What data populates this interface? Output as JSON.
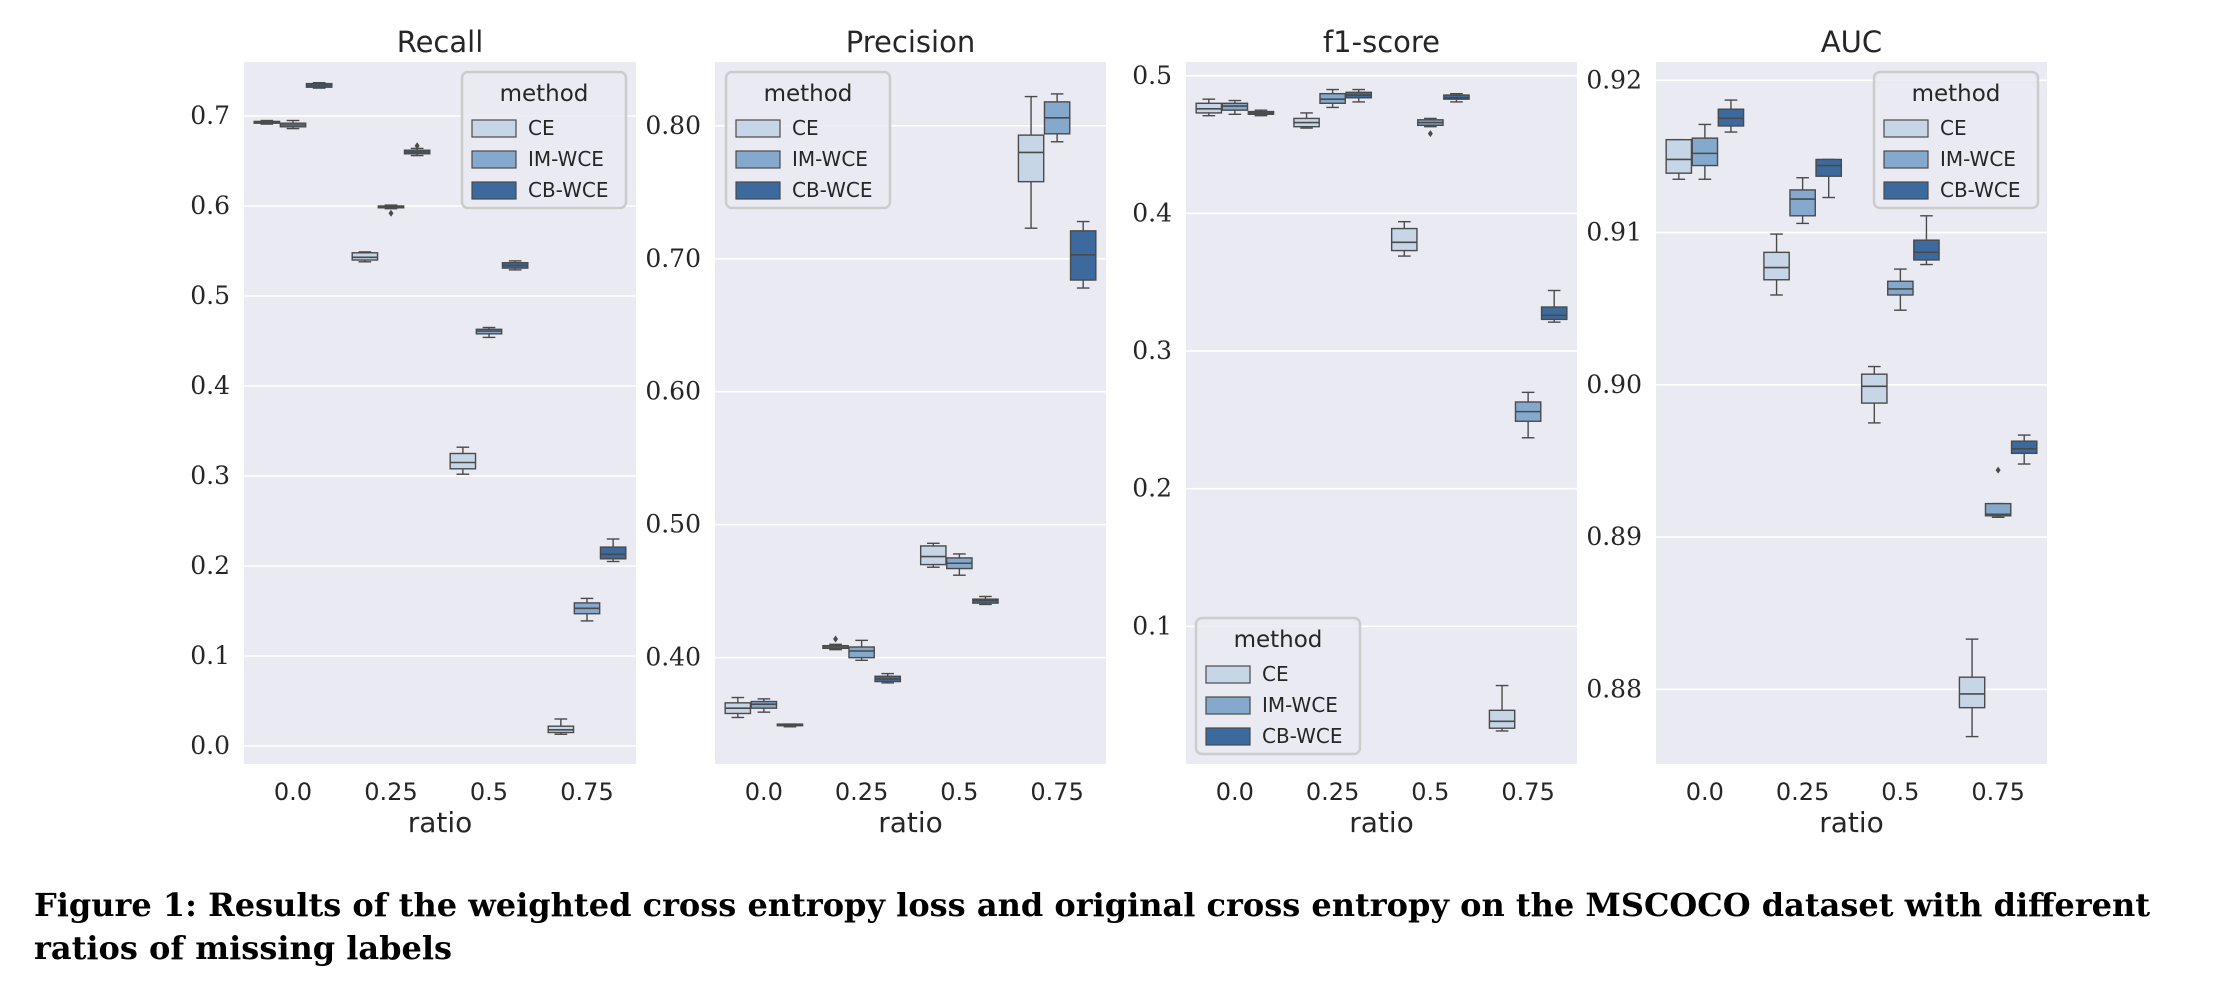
{
  "caption": "Figure 1: Results of the weighted cross entropy loss and original cross entropy on the MSCOCO dataset with different ratios of missing labels",
  "colors": {
    "CE": "#c6d6e7",
    "IM-WCE": "#84a9cd",
    "CB-WCE": "#3c6a9e",
    "background": "#eaeaf2",
    "grid": "#ffffff"
  },
  "chart_data": [
    {
      "type": "box",
      "title": "Recall",
      "xlabel": "ratio",
      "ylabel": "",
      "categories": [
        "0.0",
        "0.25",
        "0.5",
        "0.75"
      ],
      "ylim": [
        -0.02,
        0.76
      ],
      "yticks": [
        0.0,
        0.1,
        0.2,
        0.3,
        0.4,
        0.5,
        0.6,
        0.7
      ],
      "grid": true,
      "legend": {
        "title": "method",
        "location": "top-right"
      },
      "series": [
        {
          "name": "CE",
          "boxes": [
            {
              "min": 0.691,
              "q1": 0.692,
              "median": 0.693,
              "q3": 0.694,
              "max": 0.695
            },
            {
              "min": 0.538,
              "q1": 0.54,
              "median": 0.543,
              "q3": 0.548,
              "max": 0.549
            },
            {
              "min": 0.302,
              "q1": 0.308,
              "median": 0.315,
              "q3": 0.325,
              "max": 0.332
            },
            {
              "min": 0.013,
              "q1": 0.015,
              "median": 0.018,
              "q3": 0.022,
              "max": 0.03
            }
          ]
        },
        {
          "name": "IM-WCE",
          "boxes": [
            {
              "min": 0.686,
              "q1": 0.688,
              "median": 0.69,
              "q3": 0.692,
              "max": 0.695
            },
            {
              "min": 0.597,
              "q1": 0.598,
              "median": 0.599,
              "q3": 0.6,
              "max": 0.601,
              "outliers": [
                0.592
              ]
            },
            {
              "min": 0.454,
              "q1": 0.458,
              "median": 0.461,
              "q3": 0.463,
              "max": 0.465
            },
            {
              "min": 0.139,
              "q1": 0.147,
              "median": 0.153,
              "q3": 0.159,
              "max": 0.164
            }
          ]
        },
        {
          "name": "CB-WCE",
          "boxes": [
            {
              "min": 0.731,
              "q1": 0.732,
              "median": 0.734,
              "q3": 0.736,
              "max": 0.737
            },
            {
              "min": 0.656,
              "q1": 0.658,
              "median": 0.66,
              "q3": 0.662,
              "max": 0.664,
              "outliers": [
                0.667
              ]
            },
            {
              "min": 0.529,
              "q1": 0.531,
              "median": 0.534,
              "q3": 0.537,
              "max": 0.539
            },
            {
              "min": 0.205,
              "q1": 0.208,
              "median": 0.213,
              "q3": 0.221,
              "max": 0.23
            }
          ]
        }
      ]
    },
    {
      "type": "box",
      "title": "Precision",
      "xlabel": "ratio",
      "ylabel": "",
      "categories": [
        "0.0",
        "0.25",
        "0.5",
        "0.75"
      ],
      "ylim": [
        0.32,
        0.848
      ],
      "yticks": [
        0.4,
        0.5,
        0.6,
        0.7,
        0.8
      ],
      "grid": true,
      "legend": {
        "title": "method",
        "location": "top-left"
      },
      "series": [
        {
          "name": "CE",
          "boxes": [
            {
              "min": 0.355,
              "q1": 0.358,
              "median": 0.362,
              "q3": 0.366,
              "max": 0.37
            },
            {
              "min": 0.406,
              "q1": 0.407,
              "median": 0.408,
              "q3": 0.409,
              "max": 0.41,
              "outliers": [
                0.414
              ]
            },
            {
              "min": 0.468,
              "q1": 0.47,
              "median": 0.476,
              "q3": 0.484,
              "max": 0.486
            },
            {
              "min": 0.723,
              "q1": 0.758,
              "median": 0.78,
              "q3": 0.793,
              "max": 0.822
            }
          ]
        },
        {
          "name": "IM-WCE",
          "boxes": [
            {
              "min": 0.359,
              "q1": 0.362,
              "median": 0.365,
              "q3": 0.367,
              "max": 0.369
            },
            {
              "min": 0.398,
              "q1": 0.4,
              "median": 0.405,
              "q3": 0.408,
              "max": 0.413
            },
            {
              "min": 0.462,
              "q1": 0.467,
              "median": 0.471,
              "q3": 0.475,
              "max": 0.478
            },
            {
              "min": 0.788,
              "q1": 0.794,
              "median": 0.806,
              "q3": 0.818,
              "max": 0.824
            }
          ]
        },
        {
          "name": "CB-WCE",
          "boxes": [
            {
              "min": 0.348,
              "q1": 0.349,
              "median": 0.349,
              "q3": 0.35,
              "max": 0.35
            },
            {
              "min": 0.381,
              "q1": 0.382,
              "median": 0.384,
              "q3": 0.386,
              "max": 0.388
            },
            {
              "min": 0.44,
              "q1": 0.441,
              "median": 0.443,
              "q3": 0.444,
              "max": 0.446
            },
            {
              "min": 0.678,
              "q1": 0.684,
              "median": 0.703,
              "q3": 0.721,
              "max": 0.728
            }
          ]
        }
      ]
    },
    {
      "type": "box",
      "title": "f1-score",
      "xlabel": "ratio",
      "ylabel": "",
      "categories": [
        "0.0",
        "0.25",
        "0.5",
        "0.75"
      ],
      "ylim": [
        0.0,
        0.51
      ],
      "yticks": [
        0.1,
        0.2,
        0.3,
        0.4,
        0.5
      ],
      "grid": true,
      "legend": {
        "title": "method",
        "location": "bottom-left"
      },
      "series": [
        {
          "name": "CE",
          "boxes": [
            {
              "min": 0.471,
              "q1": 0.473,
              "median": 0.476,
              "q3": 0.48,
              "max": 0.483
            },
            {
              "min": 0.462,
              "q1": 0.463,
              "median": 0.466,
              "q3": 0.469,
              "max": 0.473
            },
            {
              "min": 0.369,
              "q1": 0.373,
              "median": 0.379,
              "q3": 0.389,
              "max": 0.394
            },
            {
              "min": 0.024,
              "q1": 0.026,
              "median": 0.031,
              "q3": 0.039,
              "max": 0.057
            }
          ]
        },
        {
          "name": "IM-WCE",
          "boxes": [
            {
              "min": 0.472,
              "q1": 0.475,
              "median": 0.478,
              "q3": 0.48,
              "max": 0.482
            },
            {
              "min": 0.477,
              "q1": 0.48,
              "median": 0.483,
              "q3": 0.487,
              "max": 0.49
            },
            {
              "min": 0.463,
              "q1": 0.464,
              "median": 0.466,
              "q3": 0.468,
              "max": 0.469,
              "outliers": [
                0.458
              ]
            },
            {
              "min": 0.237,
              "q1": 0.249,
              "median": 0.256,
              "q3": 0.263,
              "max": 0.27
            }
          ]
        },
        {
          "name": "CB-WCE",
          "boxes": [
            {
              "min": 0.471,
              "q1": 0.472,
              "median": 0.473,
              "q3": 0.474,
              "max": 0.475
            },
            {
              "min": 0.481,
              "q1": 0.484,
              "median": 0.486,
              "q3": 0.488,
              "max": 0.49
            },
            {
              "min": 0.481,
              "q1": 0.483,
              "median": 0.484,
              "q3": 0.486,
              "max": 0.487
            },
            {
              "min": 0.321,
              "q1": 0.323,
              "median": 0.326,
              "q3": 0.332,
              "max": 0.344
            }
          ]
        }
      ]
    },
    {
      "type": "box",
      "title": "AUC",
      "xlabel": "ratio",
      "ylabel": "",
      "categories": [
        "0.0",
        "0.25",
        "0.5",
        "0.75"
      ],
      "ylim": [
        0.8751,
        0.9212
      ],
      "yticks": [
        0.88,
        0.89,
        0.9,
        0.91,
        0.92
      ],
      "grid": true,
      "legend": {
        "title": "method",
        "location": "top-right"
      },
      "series": [
        {
          "name": "CE",
          "boxes": [
            {
              "min": 0.9135,
              "q1": 0.9139,
              "median": 0.9148,
              "q3": 0.9161,
              "max": 0.9161
            },
            {
              "min": 0.9059,
              "q1": 0.9069,
              "median": 0.9077,
              "q3": 0.9087,
              "max": 0.9099
            },
            {
              "min": 0.8975,
              "q1": 0.8988,
              "median": 0.8999,
              "q3": 0.9007,
              "max": 0.9012
            },
            {
              "min": 0.8769,
              "q1": 0.8788,
              "median": 0.8797,
              "q3": 0.8808,
              "max": 0.8833
            }
          ]
        },
        {
          "name": "IM-WCE",
          "boxes": [
            {
              "min": 0.9135,
              "q1": 0.9144,
              "median": 0.9152,
              "q3": 0.9162,
              "max": 0.9171
            },
            {
              "min": 0.9106,
              "q1": 0.9111,
              "median": 0.9122,
              "q3": 0.9128,
              "max": 0.9136
            },
            {
              "min": 0.9049,
              "q1": 0.9059,
              "median": 0.9063,
              "q3": 0.9068,
              "max": 0.9076
            },
            {
              "min": 0.8913,
              "q1": 0.8914,
              "median": 0.8915,
              "q3": 0.8922,
              "max": 0.8922,
              "outliers": [
                0.8944
              ]
            }
          ]
        },
        {
          "name": "CB-WCE",
          "boxes": [
            {
              "min": 0.9166,
              "q1": 0.917,
              "median": 0.9175,
              "q3": 0.9181,
              "max": 0.9187
            },
            {
              "min": 0.9123,
              "q1": 0.9137,
              "median": 0.9144,
              "q3": 0.9148,
              "max": 0.9148
            },
            {
              "min": 0.9079,
              "q1": 0.9082,
              "median": 0.9087,
              "q3": 0.9095,
              "max": 0.9111
            },
            {
              "min": 0.8948,
              "q1": 0.8955,
              "median": 0.8958,
              "q3": 0.8963,
              "max": 0.8967
            }
          ]
        }
      ]
    }
  ]
}
